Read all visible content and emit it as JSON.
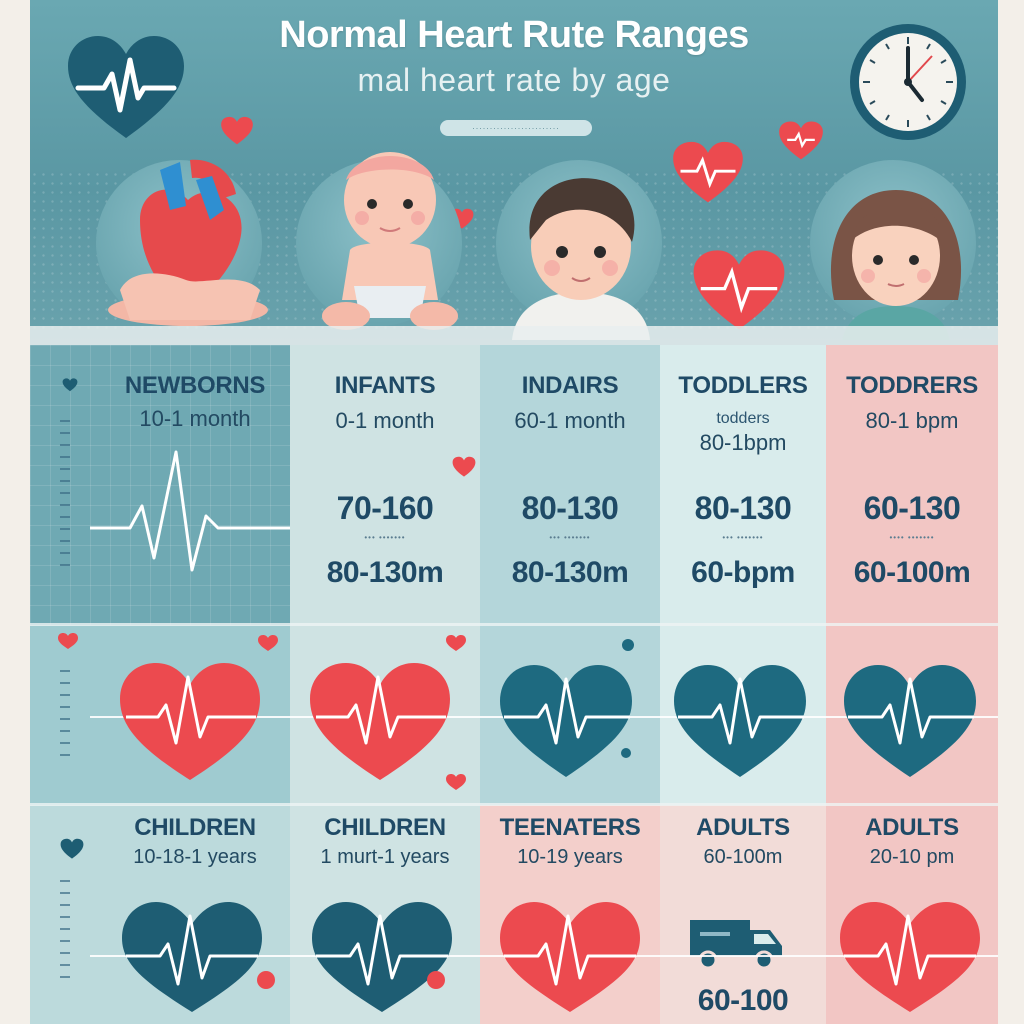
{
  "header": {
    "title": "Normal Heart Rute Ranges",
    "subtitle": "mal heart rate by age",
    "pill_text": "........................."
  },
  "colors": {
    "accent_red": "#ec4a4f",
    "accent_teal": "#1e6a80",
    "text_navy": "#1f4a66",
    "col1": "#6fa9b3",
    "col2": "#cfe3e3",
    "col3": "#b4d6da",
    "col4": "#d9ecec",
    "col5": "#f2c6c4"
  },
  "row1": [
    {
      "title": "NEWBORNS",
      "sub": "10-1 month"
    },
    {
      "title": "INFANTS",
      "sub": "0-1  month",
      "big1": "70-160",
      "big2": "80-130m"
    },
    {
      "title": "INDAIRS",
      "sub": "60-1 month",
      "big1": "80-130",
      "big2": "80-130m"
    },
    {
      "title": "TODDLERS",
      "sub": "todders",
      "sub2": "80-1bpm",
      "big1": "80-130",
      "big2": "60-bpm"
    },
    {
      "title": "TODDRERS",
      "sub": "80-1 bpm",
      "big1": "60-130",
      "big2": "60-100m"
    }
  ],
  "row3": [
    {
      "title": "CHILDREN",
      "sub": "10-18-1 years"
    },
    {
      "title": "CHILDREN",
      "sub": "1 murt-1 years"
    },
    {
      "title": "TEENATERS",
      "sub": "10-19 years"
    },
    {
      "title": "ADULTS",
      "sub": "60-100m",
      "big": "60-100"
    },
    {
      "title": "ADULTS",
      "sub": "20-10 pm"
    }
  ],
  "icons": {
    "logo": "ekg-heart-icon",
    "clock": "clock-icon",
    "van": "van-icon"
  }
}
